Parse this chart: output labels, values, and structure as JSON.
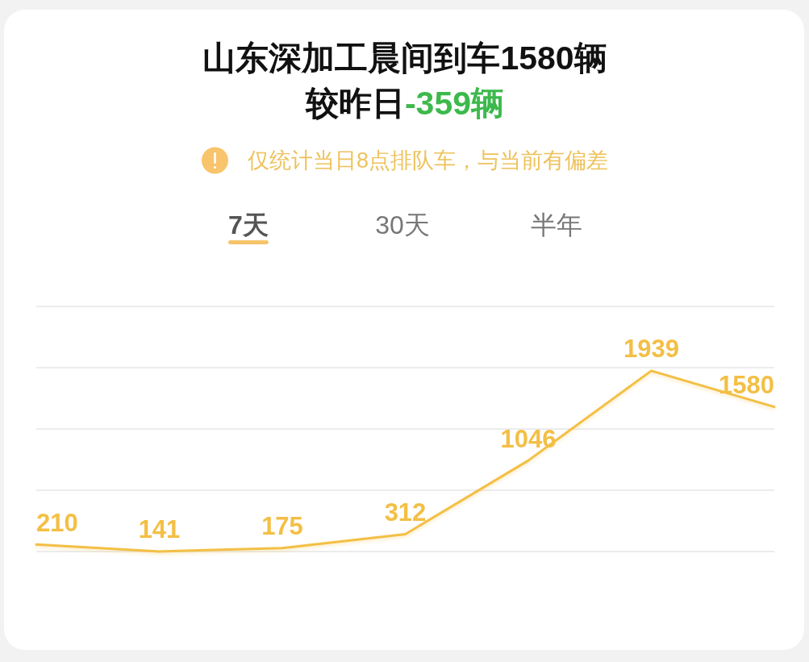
{
  "chart_data": {
    "type": "line",
    "title": "山东深加工晨间到车1580辆",
    "subtitle": "较昨日-359辆",
    "annotations": [
      "仅统计当日8点排队车，与当前有偏差",
      "7天",
      "30天",
      "半年"
    ],
    "categories": [
      null,
      null,
      null,
      null,
      null,
      null,
      null
    ],
    "series": [
      {
        "color": "#f3bf45",
        "values": [
          210,
          141,
          175,
          312,
          1046,
          1939,
          1580
        ]
      }
    ],
    "data_labels": true,
    "line_style": "solid",
    "ylim": [
      140,
      2580
    ],
    "yticks": [
      {
        "value": 140,
        "label": null
      },
      {
        "value": 750,
        "label": null
      },
      {
        "value": 1360,
        "label": null
      },
      {
        "value": 1970,
        "label": null
      },
      {
        "value": 2580,
        "label": null
      }
    ],
    "grid": "y"
  }
}
